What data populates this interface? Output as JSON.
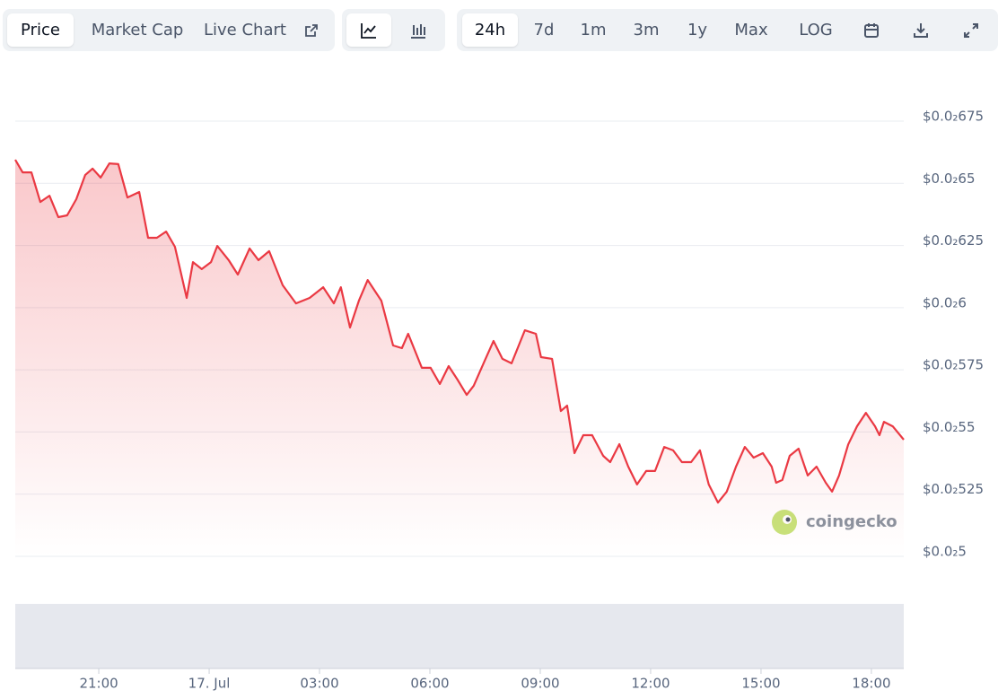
{
  "toolbar": {
    "tabs": [
      "Price",
      "Market Cap",
      "Live Chart"
    ],
    "ranges": [
      "24h",
      "7d",
      "1m",
      "3m",
      "1y",
      "Max",
      "LOG"
    ]
  },
  "watermark": "coingecko",
  "chart_data": {
    "type": "line",
    "color": "#ea3943",
    "grid": true,
    "x": [
      18.73,
      18.93,
      19.17,
      19.41,
      19.66,
      19.9,
      20.14,
      20.39,
      20.63,
      20.83,
      21.05,
      21.29,
      21.53,
      21.78,
      22.1,
      22.34,
      22.58,
      22.83,
      23.07,
      23.39,
      23.56,
      23.8,
      24.05,
      24.22,
      24.53,
      24.78,
      25.1,
      25.34,
      25.63,
      26.0,
      26.36,
      26.73,
      27.1,
      27.39,
      27.58,
      27.83,
      28.07,
      28.31,
      28.68,
      29.0,
      29.24,
      29.41,
      29.78,
      30.02,
      30.27,
      30.51,
      30.75,
      31.0,
      31.19,
      31.49,
      31.73,
      31.97,
      32.22,
      32.58,
      32.88,
      33.02,
      33.32,
      33.56,
      33.73,
      33.93,
      34.17,
      34.41,
      34.71,
      34.9,
      35.15,
      35.39,
      35.63,
      35.88,
      36.12,
      36.37,
      36.61,
      36.85,
      37.1,
      37.34,
      37.58,
      37.83,
      38.07,
      38.32,
      38.56,
      38.8,
      39.05,
      39.29,
      39.41,
      39.58,
      39.78,
      40.02,
      40.27,
      40.51,
      40.76,
      40.93,
      41.12,
      41.37,
      41.61,
      41.85,
      42.1,
      42.22,
      42.34,
      42.58,
      42.88
    ],
    "values": [
      0.006595,
      0.006544,
      0.006544,
      0.006425,
      0.00645,
      0.006364,
      0.006371,
      0.006436,
      0.006533,
      0.006559,
      0.006523,
      0.00658,
      0.006577,
      0.006443,
      0.006465,
      0.006281,
      0.006281,
      0.006306,
      0.006245,
      0.006039,
      0.006183,
      0.006155,
      0.006183,
      0.006248,
      0.006191,
      0.006133,
      0.006238,
      0.006191,
      0.006227,
      0.00609,
      0.006017,
      0.006039,
      0.006082,
      0.006017,
      0.006082,
      0.00592,
      0.006028,
      0.006111,
      0.006028,
      0.005848,
      0.005837,
      0.005895,
      0.005758,
      0.005758,
      0.005693,
      0.005765,
      0.005711,
      0.005649,
      0.005686,
      0.005787,
      0.005866,
      0.005794,
      0.005776,
      0.005909,
      0.005895,
      0.005801,
      0.005794,
      0.005584,
      0.005606,
      0.005415,
      0.005487,
      0.005487,
      0.005404,
      0.005379,
      0.005451,
      0.005361,
      0.005289,
      0.005343,
      0.005343,
      0.00544,
      0.005426,
      0.005379,
      0.005379,
      0.005426,
      0.005289,
      0.005216,
      0.00526,
      0.005361,
      0.00544,
      0.005397,
      0.005415,
      0.005361,
      0.005296,
      0.005307,
      0.005404,
      0.005433,
      0.005325,
      0.005361,
      0.005296,
      0.00526,
      0.005325,
      0.00545,
      0.005523,
      0.005577,
      0.005523,
      0.005487,
      0.005541,
      0.005523,
      0.005469
    ],
    "xlim": [
      18.73,
      42.88
    ],
    "xticks": [
      {
        "value": 21,
        "label": "21:00"
      },
      {
        "value": 24,
        "label": "17. Jul"
      },
      {
        "value": 27,
        "label": "03:00"
      },
      {
        "value": 30,
        "label": "06:00"
      },
      {
        "value": 33,
        "label": "09:00"
      },
      {
        "value": 36,
        "label": "12:00"
      },
      {
        "value": 39,
        "label": "15:00"
      },
      {
        "value": 42,
        "label": "18:00"
      }
    ],
    "ylim": [
      0.005,
      0.00675
    ],
    "yticks": [
      {
        "value": 0.005,
        "label": "$0.0₂5"
      },
      {
        "value": 0.00525,
        "label": "$0.0₂525"
      },
      {
        "value": 0.0055,
        "label": "$0.0₂55"
      },
      {
        "value": 0.00575,
        "label": "$0.0₂575"
      },
      {
        "value": 0.006,
        "label": "$0.0₂6"
      },
      {
        "value": 0.00625,
        "label": "$0.0₂625"
      },
      {
        "value": 0.0065,
        "label": "$0.0₂65"
      },
      {
        "value": 0.00675,
        "label": "$0.0₂675"
      }
    ]
  }
}
